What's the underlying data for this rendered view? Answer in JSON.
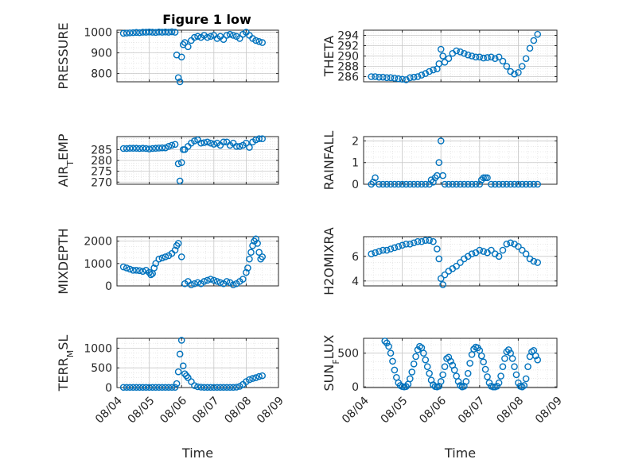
{
  "figure": {
    "title": "Figure 1 low",
    "marker_color": "#0072BD",
    "axis_color": "#262626",
    "grid_color": "#dcdcdc"
  },
  "chart_data": [
    {
      "type": "scatter",
      "ylabel": "PRESSURE",
      "xlabel": "",
      "title": "Figure 1 low",
      "xlim": [
        0,
        5
      ],
      "ylim": [
        760,
        1010
      ],
      "yticks": [
        800,
        900,
        1000
      ],
      "ytick_labels": [
        "800",
        "900",
        "1000"
      ],
      "xticks": [
        0,
        1,
        2,
        3,
        4,
        5
      ],
      "xtick_labels": [],
      "grid": true,
      "x": [
        0.2,
        0.3,
        0.4,
        0.5,
        0.6,
        0.7,
        0.8,
        0.9,
        1.0,
        1.1,
        1.2,
        1.3,
        1.4,
        1.5,
        1.6,
        1.7,
        1.8,
        1.85,
        1.9,
        1.95,
        2.0,
        2.05,
        2.1,
        2.2,
        2.3,
        2.4,
        2.5,
        2.6,
        2.7,
        2.8,
        2.9,
        3.0,
        3.1,
        3.2,
        3.3,
        3.4,
        3.5,
        3.6,
        3.7,
        3.8,
        3.9,
        4.0,
        4.1,
        4.2,
        4.3,
        4.4,
        4.5
      ],
      "y": [
        995,
        996,
        997,
        998,
        999,
        998,
        1000,
        1000,
        1001,
        1000,
        999,
        1001,
        1000,
        1001,
        1000,
        1002,
        1000,
        890,
        780,
        760,
        880,
        940,
        950,
        930,
        960,
        975,
        980,
        975,
        985,
        975,
        980,
        985,
        970,
        980,
        965,
        985,
        990,
        985,
        980,
        970,
        990,
        1000,
        985,
        970,
        960,
        955,
        950
      ]
    },
    {
      "type": "scatter",
      "ylabel": "THETA",
      "xlabel": "",
      "title": "",
      "xlim": [
        0,
        5
      ],
      "ylim": [
        285,
        295
      ],
      "yticks": [
        286,
        288,
        290,
        292,
        294
      ],
      "ytick_labels": [
        "286",
        "288",
        "290",
        "292",
        "294"
      ],
      "xticks": [
        0,
        1,
        2,
        3,
        4,
        5
      ],
      "xtick_labels": [],
      "grid": true,
      "x": [
        0.2,
        0.3,
        0.4,
        0.5,
        0.6,
        0.7,
        0.8,
        0.9,
        1.0,
        1.1,
        1.2,
        1.3,
        1.4,
        1.5,
        1.6,
        1.7,
        1.8,
        1.9,
        1.95,
        2.0,
        2.05,
        2.1,
        2.2,
        2.3,
        2.4,
        2.5,
        2.6,
        2.7,
        2.8,
        2.9,
        3.0,
        3.1,
        3.2,
        3.3,
        3.4,
        3.5,
        3.6,
        3.7,
        3.8,
        3.9,
        4.0,
        4.1,
        4.2,
        4.3,
        4.4,
        4.5
      ],
      "y": [
        286.0,
        286.0,
        285.9,
        285.9,
        285.8,
        285.8,
        285.7,
        285.6,
        285.5,
        285.4,
        285.8,
        285.9,
        286.0,
        286.3,
        286.6,
        287.0,
        287.3,
        287.5,
        288.5,
        291.3,
        290.0,
        288.8,
        289.5,
        290.5,
        291.0,
        290.8,
        290.5,
        290.2,
        290.0,
        289.8,
        289.8,
        289.6,
        289.7,
        289.8,
        289.5,
        289.8,
        289.0,
        288.0,
        287.0,
        286.5,
        286.8,
        288.0,
        289.5,
        291.5,
        293.0,
        294.2
      ]
    },
    {
      "type": "scatter",
      "ylabel": "AIR_TEMP",
      "xlabel": "",
      "title": "",
      "xlim": [
        0,
        5
      ],
      "ylim": [
        269,
        291
      ],
      "yticks": [
        270,
        275,
        280,
        285
      ],
      "ytick_labels": [
        "270",
        "275",
        "280",
        "285"
      ],
      "xticks": [
        0,
        1,
        2,
        3,
        4,
        5
      ],
      "xtick_labels": [],
      "grid": true,
      "x": [
        0.2,
        0.3,
        0.4,
        0.5,
        0.6,
        0.7,
        0.8,
        0.9,
        1.0,
        1.1,
        1.2,
        1.3,
        1.4,
        1.5,
        1.6,
        1.7,
        1.8,
        1.9,
        1.95,
        2.0,
        2.05,
        2.1,
        2.2,
        2.3,
        2.4,
        2.5,
        2.6,
        2.7,
        2.8,
        2.9,
        3.0,
        3.1,
        3.2,
        3.3,
        3.4,
        3.5,
        3.6,
        3.7,
        3.8,
        3.9,
        4.0,
        4.1,
        4.2,
        4.3,
        4.4,
        4.5
      ],
      "y": [
        285.5,
        285.5,
        285.6,
        285.6,
        285.6,
        285.5,
        285.6,
        285.5,
        285.3,
        285.5,
        285.6,
        285.7,
        285.8,
        285.8,
        286.5,
        287.0,
        287.4,
        278.5,
        270.5,
        279.0,
        285.0,
        285.0,
        286.5,
        288.0,
        289.0,
        289.5,
        288.0,
        288.2,
        288.5,
        288.0,
        287.5,
        288.0,
        287.0,
        288.5,
        288.5,
        287.0,
        288.0,
        286.5,
        286.5,
        287.0,
        288.0,
        286.0,
        288.5,
        289.5,
        290.0,
        290.0
      ]
    },
    {
      "type": "scatter",
      "ylabel": "RAINFALL",
      "xlabel": "",
      "title": "",
      "xlim": [
        0,
        5
      ],
      "ylim": [
        0,
        2.2
      ],
      "yticks": [
        0,
        1,
        2
      ],
      "ytick_labels": [
        "0",
        "1",
        "2"
      ],
      "xticks": [
        0,
        1,
        2,
        3,
        4,
        5
      ],
      "xtick_labels": [],
      "grid": true,
      "x": [
        0.2,
        0.25,
        0.3,
        0.4,
        0.5,
        0.6,
        0.7,
        0.8,
        0.9,
        1.0,
        1.1,
        1.2,
        1.3,
        1.4,
        1.5,
        1.6,
        1.7,
        1.75,
        1.8,
        1.85,
        1.9,
        1.95,
        2.0,
        2.05,
        2.1,
        2.2,
        2.3,
        2.4,
        2.5,
        2.6,
        2.7,
        2.8,
        2.9,
        3.0,
        3.05,
        3.1,
        3.15,
        3.2,
        3.3,
        3.4,
        3.5,
        3.6,
        3.7,
        3.8,
        3.9,
        4.0,
        4.1,
        4.2,
        4.3,
        4.4,
        4.5
      ],
      "y": [
        0,
        0.1,
        0.3,
        0,
        0,
        0,
        0,
        0,
        0,
        0,
        0,
        0,
        0,
        0,
        0,
        0,
        0,
        0.2,
        0.1,
        0.3,
        0.4,
        1.0,
        2.0,
        0.4,
        0,
        0,
        0,
        0,
        0,
        0,
        0,
        0,
        0,
        0,
        0.2,
        0.3,
        0.3,
        0.3,
        0,
        0,
        0,
        0,
        0,
        0,
        0,
        0,
        0,
        0,
        0,
        0,
        0
      ]
    },
    {
      "type": "scatter",
      "ylabel": "MIXDEPTH",
      "xlabel": "",
      "title": "",
      "xlim": [
        0,
        5
      ],
      "ylim": [
        0,
        2200
      ],
      "yticks": [
        0,
        1000,
        2000
      ],
      "ytick_labels": [
        "0",
        "1000",
        "2000"
      ],
      "xticks": [
        0,
        1,
        2,
        3,
        4,
        5
      ],
      "xtick_labels": [],
      "grid": true,
      "x": [
        0.2,
        0.3,
        0.4,
        0.5,
        0.6,
        0.7,
        0.8,
        0.9,
        1.0,
        1.05,
        1.1,
        1.15,
        1.2,
        1.3,
        1.4,
        1.5,
        1.6,
        1.7,
        1.8,
        1.85,
        1.9,
        2.0,
        2.1,
        2.2,
        2.3,
        2.4,
        2.5,
        2.6,
        2.7,
        2.8,
        2.9,
        3.0,
        3.1,
        3.2,
        3.3,
        3.4,
        3.5,
        3.6,
        3.7,
        3.8,
        3.9,
        4.0,
        4.05,
        4.1,
        4.15,
        4.2,
        4.25,
        4.3,
        4.35,
        4.4,
        4.45,
        4.5
      ],
      "y": [
        850,
        800,
        750,
        700,
        700,
        680,
        650,
        700,
        600,
        500,
        550,
        800,
        1000,
        1200,
        1250,
        1300,
        1350,
        1450,
        1600,
        1800,
        1900,
        1300,
        100,
        200,
        50,
        100,
        150,
        100,
        200,
        250,
        300,
        250,
        200,
        150,
        100,
        200,
        150,
        50,
        100,
        200,
        300,
        600,
        800,
        1200,
        1500,
        1800,
        2000,
        2100,
        1900,
        1500,
        1200,
        1300
      ]
    },
    {
      "type": "scatter",
      "ylabel": "H2OMIXRA",
      "xlabel": "",
      "title": "",
      "xlim": [
        0,
        5
      ],
      "ylim": [
        3.6,
        7.6
      ],
      "yticks": [
        4,
        6
      ],
      "ytick_labels": [
        "4",
        "6"
      ],
      "xticks": [
        0,
        1,
        2,
        3,
        4,
        5
      ],
      "xtick_labels": [],
      "grid": true,
      "x": [
        0.2,
        0.3,
        0.4,
        0.5,
        0.6,
        0.7,
        0.8,
        0.9,
        1.0,
        1.1,
        1.2,
        1.3,
        1.4,
        1.5,
        1.6,
        1.7,
        1.8,
        1.9,
        1.95,
        2.0,
        2.05,
        2.1,
        2.2,
        2.3,
        2.4,
        2.5,
        2.6,
        2.7,
        2.8,
        2.9,
        3.0,
        3.1,
        3.2,
        3.3,
        3.4,
        3.5,
        3.6,
        3.7,
        3.8,
        3.9,
        4.0,
        4.1,
        4.2,
        4.3,
        4.4,
        4.5
      ],
      "y": [
        6.2,
        6.3,
        6.4,
        6.5,
        6.5,
        6.6,
        6.7,
        6.8,
        6.9,
        7.0,
        7.0,
        7.1,
        7.2,
        7.2,
        7.3,
        7.3,
        7.2,
        6.6,
        5.8,
        4.2,
        3.7,
        4.5,
        4.8,
        5.0,
        5.2,
        5.5,
        5.8,
        6.0,
        6.2,
        6.3,
        6.5,
        6.4,
        6.3,
        6.5,
        6.2,
        6.0,
        6.5,
        7.0,
        7.1,
        7.0,
        6.8,
        6.5,
        6.2,
        5.8,
        5.6,
        5.5
      ]
    },
    {
      "type": "scatter",
      "ylabel": "TERR_MSL",
      "xlabel": "Time",
      "title": "",
      "xlim": [
        0,
        5
      ],
      "ylim": [
        0,
        1250
      ],
      "yticks": [
        0,
        500,
        1000
      ],
      "ytick_labels": [
        "0",
        "500",
        "1000"
      ],
      "xticks": [
        0,
        1,
        2,
        3,
        4,
        5
      ],
      "xtick_labels": [
        "08/04",
        "08/05",
        "08/06",
        "08/07",
        "08/08",
        "08/09"
      ],
      "grid": true,
      "x": [
        0.2,
        0.3,
        0.4,
        0.5,
        0.6,
        0.7,
        0.8,
        0.9,
        1.0,
        1.1,
        1.2,
        1.3,
        1.4,
        1.5,
        1.6,
        1.7,
        1.8,
        1.85,
        1.9,
        1.95,
        2.0,
        2.05,
        2.1,
        2.15,
        2.2,
        2.3,
        2.4,
        2.5,
        2.6,
        2.7,
        2.8,
        2.9,
        3.0,
        3.1,
        3.2,
        3.3,
        3.4,
        3.5,
        3.6,
        3.7,
        3.8,
        3.9,
        4.0,
        4.1,
        4.2,
        4.3,
        4.4,
        4.5
      ],
      "y": [
        5,
        5,
        5,
        5,
        5,
        5,
        5,
        5,
        5,
        5,
        5,
        5,
        5,
        5,
        5,
        5,
        5,
        100,
        400,
        850,
        1200,
        550,
        350,
        300,
        250,
        150,
        50,
        20,
        10,
        5,
        5,
        5,
        5,
        5,
        5,
        5,
        5,
        5,
        5,
        10,
        30,
        80,
        150,
        200,
        230,
        250,
        280,
        300
      ]
    },
    {
      "type": "scatter",
      "ylabel": "SUN_FLUX",
      "xlabel": "Time",
      "title": "",
      "xlim": [
        0,
        5
      ],
      "ylim": [
        -10,
        720
      ],
      "yticks": [
        0,
        500
      ],
      "ytick_labels": [
        "0",
        "500"
      ],
      "xticks": [
        0,
        1,
        2,
        3,
        4,
        5
      ],
      "xtick_labels": [
        "08/04",
        "08/05",
        "08/06",
        "08/07",
        "08/08",
        "08/09"
      ],
      "grid": true,
      "x": [
        0.55,
        0.6,
        0.65,
        0.7,
        0.75,
        0.8,
        0.85,
        0.9,
        0.95,
        1.0,
        1.05,
        1.1,
        1.15,
        1.2,
        1.25,
        1.3,
        1.35,
        1.4,
        1.45,
        1.5,
        1.55,
        1.6,
        1.65,
        1.7,
        1.75,
        1.8,
        1.85,
        1.9,
        1.95,
        2.0,
        2.05,
        2.1,
        2.15,
        2.2,
        2.25,
        2.3,
        2.35,
        2.4,
        2.45,
        2.5,
        2.55,
        2.6,
        2.65,
        2.7,
        2.75,
        2.8,
        2.85,
        2.9,
        2.95,
        3.0,
        3.05,
        3.1,
        3.15,
        3.2,
        3.25,
        3.3,
        3.35,
        3.4,
        3.45,
        3.5,
        3.55,
        3.6,
        3.65,
        3.7,
        3.75,
        3.8,
        3.85,
        3.9,
        3.95,
        4.0,
        4.05,
        4.1,
        4.15,
        4.2,
        4.25,
        4.3,
        4.35,
        4.4,
        4.45,
        4.5
      ],
      "y": [
        680,
        650,
        600,
        500,
        380,
        250,
        140,
        60,
        20,
        5,
        0,
        5,
        40,
        120,
        220,
        340,
        450,
        550,
        600,
        580,
        500,
        400,
        300,
        200,
        100,
        30,
        5,
        0,
        10,
        80,
        180,
        300,
        420,
        440,
        380,
        320,
        250,
        160,
        80,
        20,
        0,
        10,
        80,
        200,
        350,
        480,
        560,
        590,
        580,
        540,
        460,
        370,
        260,
        150,
        60,
        10,
        0,
        0,
        10,
        60,
        160,
        300,
        420,
        520,
        550,
        500,
        420,
        300,
        180,
        60,
        10,
        0,
        20,
        120,
        300,
        450,
        520,
        540,
        460,
        400
      ]
    }
  ]
}
